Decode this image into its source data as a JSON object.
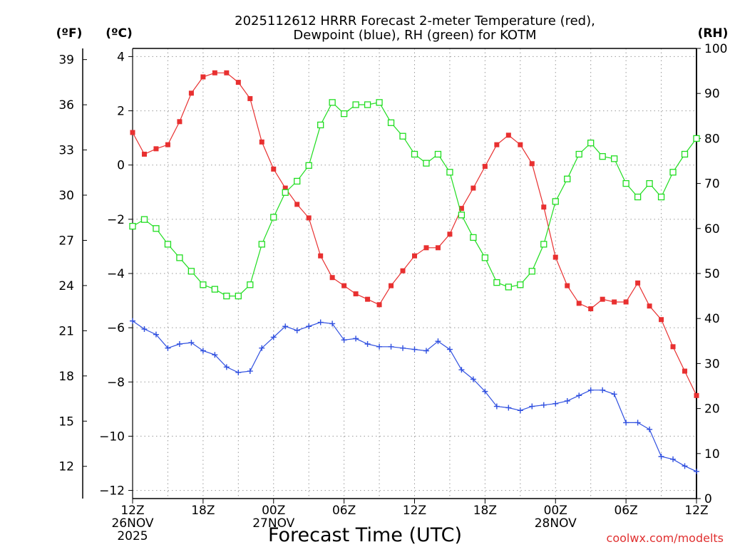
{
  "chart_data": {
    "type": "line",
    "title_lines": [
      "2025112612 HRRR Forecast 2-meter Temperature (red),",
      "Dewpoint (blue), RH (green) for KOTM"
    ],
    "xlabel": "Forecast Time (UTC)",
    "credit": "coolwx.com/modelts",
    "x_hours": [
      0,
      1,
      2,
      3,
      4,
      5,
      6,
      7,
      8,
      9,
      10,
      11,
      12,
      13,
      14,
      15,
      16,
      17,
      18,
      19,
      20,
      21,
      22,
      23,
      24,
      25,
      26,
      27,
      28,
      29,
      30,
      31,
      32,
      33,
      34,
      35,
      36,
      37,
      38,
      39,
      40,
      41,
      42,
      43,
      44,
      45,
      46,
      47,
      48
    ],
    "x_ticks": [
      {
        "hour": 0,
        "lines": [
          "12Z",
          "26NOV",
          "2025"
        ]
      },
      {
        "hour": 6,
        "lines": [
          "18Z"
        ]
      },
      {
        "hour": 12,
        "lines": [
          "00Z",
          "27NOV"
        ]
      },
      {
        "hour": 18,
        "lines": [
          "06Z"
        ]
      },
      {
        "hour": 24,
        "lines": [
          "12Z"
        ]
      },
      {
        "hour": 30,
        "lines": [
          "18Z"
        ]
      },
      {
        "hour": 36,
        "lines": [
          "00Z",
          "28NOV"
        ]
      },
      {
        "hour": 42,
        "lines": [
          "06Z"
        ]
      },
      {
        "hour": 48,
        "lines": [
          "12Z"
        ]
      }
    ],
    "axes": {
      "celsius": {
        "unit_label": "(ºC)",
        "min": -12.3,
        "max": 4.3,
        "ticks": [
          4,
          2,
          0,
          -2,
          -4,
          -6,
          -8,
          -10,
          -12
        ],
        "tick_labels": [
          "4",
          "2",
          "0",
          "−2",
          "−4",
          "−6",
          "−8",
          "−10",
          "−12"
        ]
      },
      "fahrenheit": {
        "unit_label": "(ºF)",
        "ticks": [
          39,
          36,
          33,
          30,
          27,
          24,
          21,
          18,
          15,
          12
        ],
        "tick_labels": [
          "39",
          "36",
          "33",
          "30",
          "27",
          "24",
          "21",
          "18",
          "15",
          "12"
        ]
      },
      "rh": {
        "unit_label": "(RH)",
        "min": 0,
        "max": 100,
        "ticks": [
          0,
          10,
          20,
          30,
          40,
          50,
          60,
          70,
          80,
          90,
          100
        ],
        "tick_labels": [
          "0",
          "10",
          "20",
          "30",
          "40",
          "50",
          "60",
          "70",
          "80",
          "90",
          "100"
        ]
      }
    },
    "series": [
      {
        "name": "2-meter Temperature",
        "unit": "C",
        "axis": "celsius",
        "color": "#e83030",
        "marker": "filled-square",
        "values": [
          1.2,
          0.4,
          0.6,
          0.75,
          1.6,
          2.65,
          3.25,
          3.4,
          3.4,
          3.05,
          2.45,
          0.85,
          -0.15,
          -0.85,
          -1.45,
          -1.95,
          -3.35,
          -4.15,
          -4.45,
          -4.75,
          -4.95,
          -5.15,
          -4.45,
          -3.9,
          -3.35,
          -3.05,
          -3.05,
          -2.55,
          -1.6,
          -0.85,
          -0.05,
          0.75,
          1.1,
          0.75,
          0.05,
          -1.55,
          -3.4,
          -4.45,
          -5.1,
          -5.3,
          -4.95,
          -5.05,
          -5.05,
          -4.35,
          -5.2,
          -5.7,
          -6.7,
          -7.6,
          -8.5
        ]
      },
      {
        "name": "Dewpoint",
        "unit": "C",
        "axis": "celsius",
        "color": "#3050e0",
        "marker": "plus",
        "values": [
          -5.75,
          -6.05,
          -6.25,
          -6.75,
          -6.6,
          -6.55,
          -6.85,
          -7.0,
          -7.45,
          -7.65,
          -7.6,
          -6.75,
          -6.35,
          -5.95,
          -6.1,
          -5.95,
          -5.8,
          -5.85,
          -6.45,
          -6.4,
          -6.6,
          -6.7,
          -6.7,
          -6.75,
          -6.8,
          -6.85,
          -6.5,
          -6.8,
          -7.55,
          -7.9,
          -8.35,
          -8.9,
          -8.95,
          -9.05,
          -8.9,
          -8.85,
          -8.8,
          -8.7,
          -8.5,
          -8.3,
          -8.3,
          -8.45,
          -9.5,
          -9.5,
          -9.75,
          -10.75,
          -10.85,
          -11.1,
          -11.3
        ]
      },
      {
        "name": "RH",
        "unit": "%",
        "axis": "rh",
        "color": "#20dd20",
        "marker": "open-square",
        "values": [
          60.5,
          62,
          60,
          56.5,
          53.5,
          50.5,
          47.5,
          46.5,
          45,
          45,
          47.5,
          56.5,
          62.5,
          68,
          70.5,
          74,
          83,
          88,
          85.5,
          87.5,
          87.5,
          88,
          83.5,
          80.5,
          76.5,
          74.5,
          76.5,
          72.5,
          63,
          58,
          53.5,
          48,
          47,
          47.5,
          50.5,
          56.5,
          66,
          71,
          76.5,
          79,
          76,
          75.5,
          70,
          67,
          70,
          67,
          72.5,
          76.5,
          80
        ]
      }
    ]
  }
}
